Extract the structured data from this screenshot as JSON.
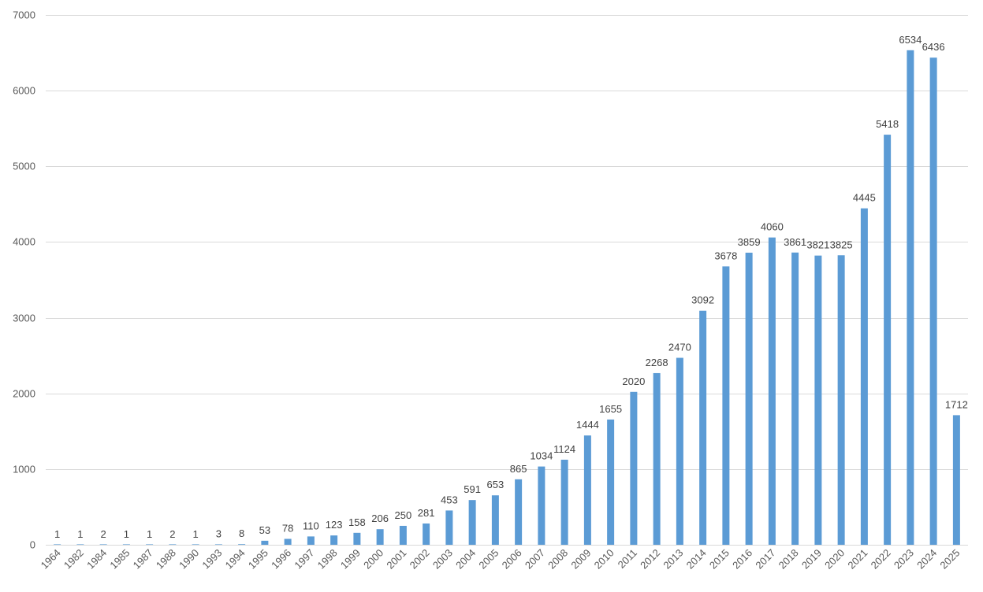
{
  "chart_data": {
    "type": "bar",
    "title": "",
    "xlabel": "",
    "ylabel": "",
    "ylim": [
      0,
      7000
    ],
    "yticks": [
      0,
      1000,
      2000,
      3000,
      4000,
      5000,
      6000,
      7000
    ],
    "grid": true,
    "legend": "none",
    "bar_color": "#5b9bd5",
    "categories": [
      "1964",
      "1982",
      "1984",
      "1985",
      "1987",
      "1988",
      "1990",
      "1993",
      "1994",
      "1995",
      "1996",
      "1997",
      "1998",
      "1999",
      "2000",
      "2001",
      "2002",
      "2003",
      "2004",
      "2005",
      "2006",
      "2007",
      "2008",
      "2009",
      "2010",
      "2011",
      "2012",
      "2013",
      "2014",
      "2015",
      "2016",
      "2017",
      "2018",
      "2019",
      "2020",
      "2021",
      "2022",
      "2023",
      "2024",
      "2025"
    ],
    "values": [
      1,
      1,
      2,
      1,
      1,
      2,
      1,
      3,
      8,
      53,
      78,
      110,
      123,
      158,
      206,
      250,
      281,
      453,
      591,
      653,
      865,
      1034,
      1124,
      1444,
      1655,
      2020,
      2268,
      2470,
      3092,
      3678,
      3859,
      4060,
      3861,
      3821,
      3825,
      4445,
      5418,
      6534,
      6436,
      1712
    ]
  }
}
